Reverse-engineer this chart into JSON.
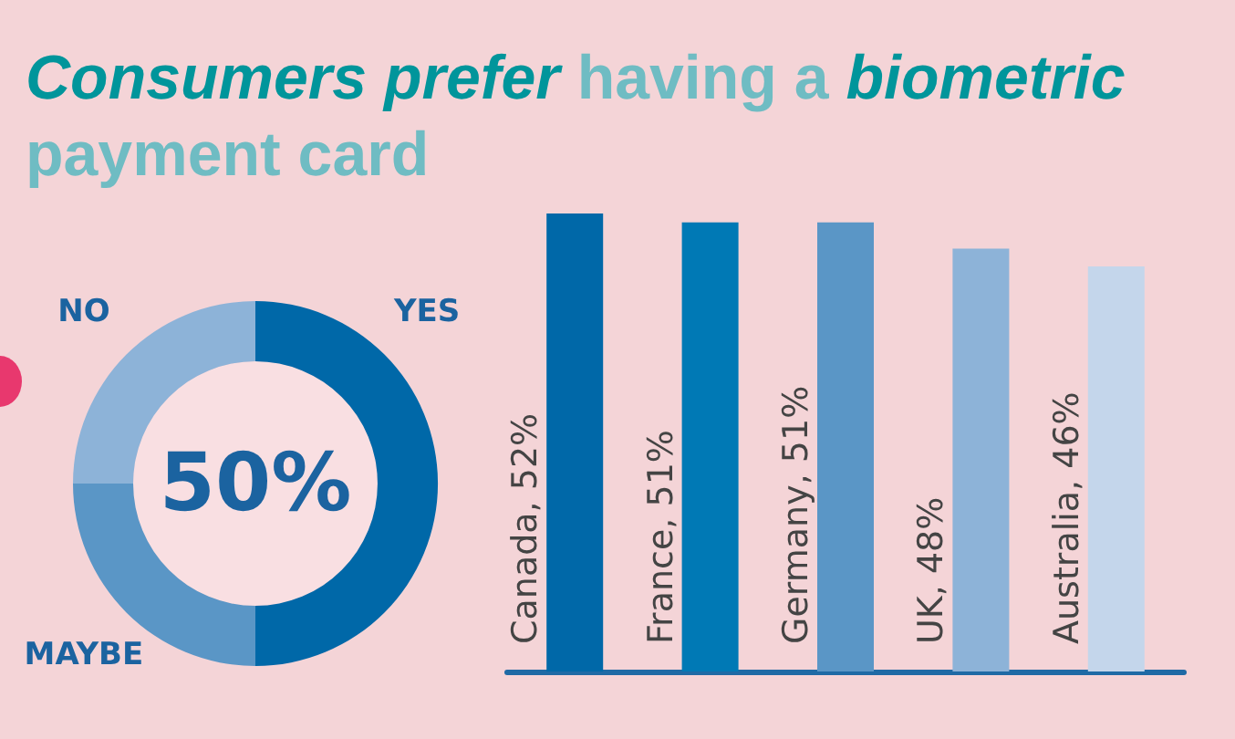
{
  "chart_data": [
    {
      "type": "donut",
      "title": "Consumers prefer having a biometric payment card",
      "categories": [
        "YES",
        "MAYBE",
        "NO"
      ],
      "values": [
        50,
        25,
        25
      ],
      "colors": [
        "#0068a8",
        "#5a96c6",
        "#8db3d8"
      ],
      "annotations": [
        "50%"
      ]
    },
    {
      "type": "bar",
      "categories": [
        null,
        null,
        null,
        null,
        null
      ],
      "values": [
        52,
        51,
        51,
        48,
        46
      ],
      "colors": [
        "#0068a8",
        "#0079b5",
        "#5a96c6",
        "#8db3d8",
        "#c4d6eb"
      ],
      "value_labels": [
        "Canada, 52%",
        "France, 51%",
        "Germany, 51%",
        "UK, 48%",
        "Australia, 46%"
      ]
    }
  ]
}
